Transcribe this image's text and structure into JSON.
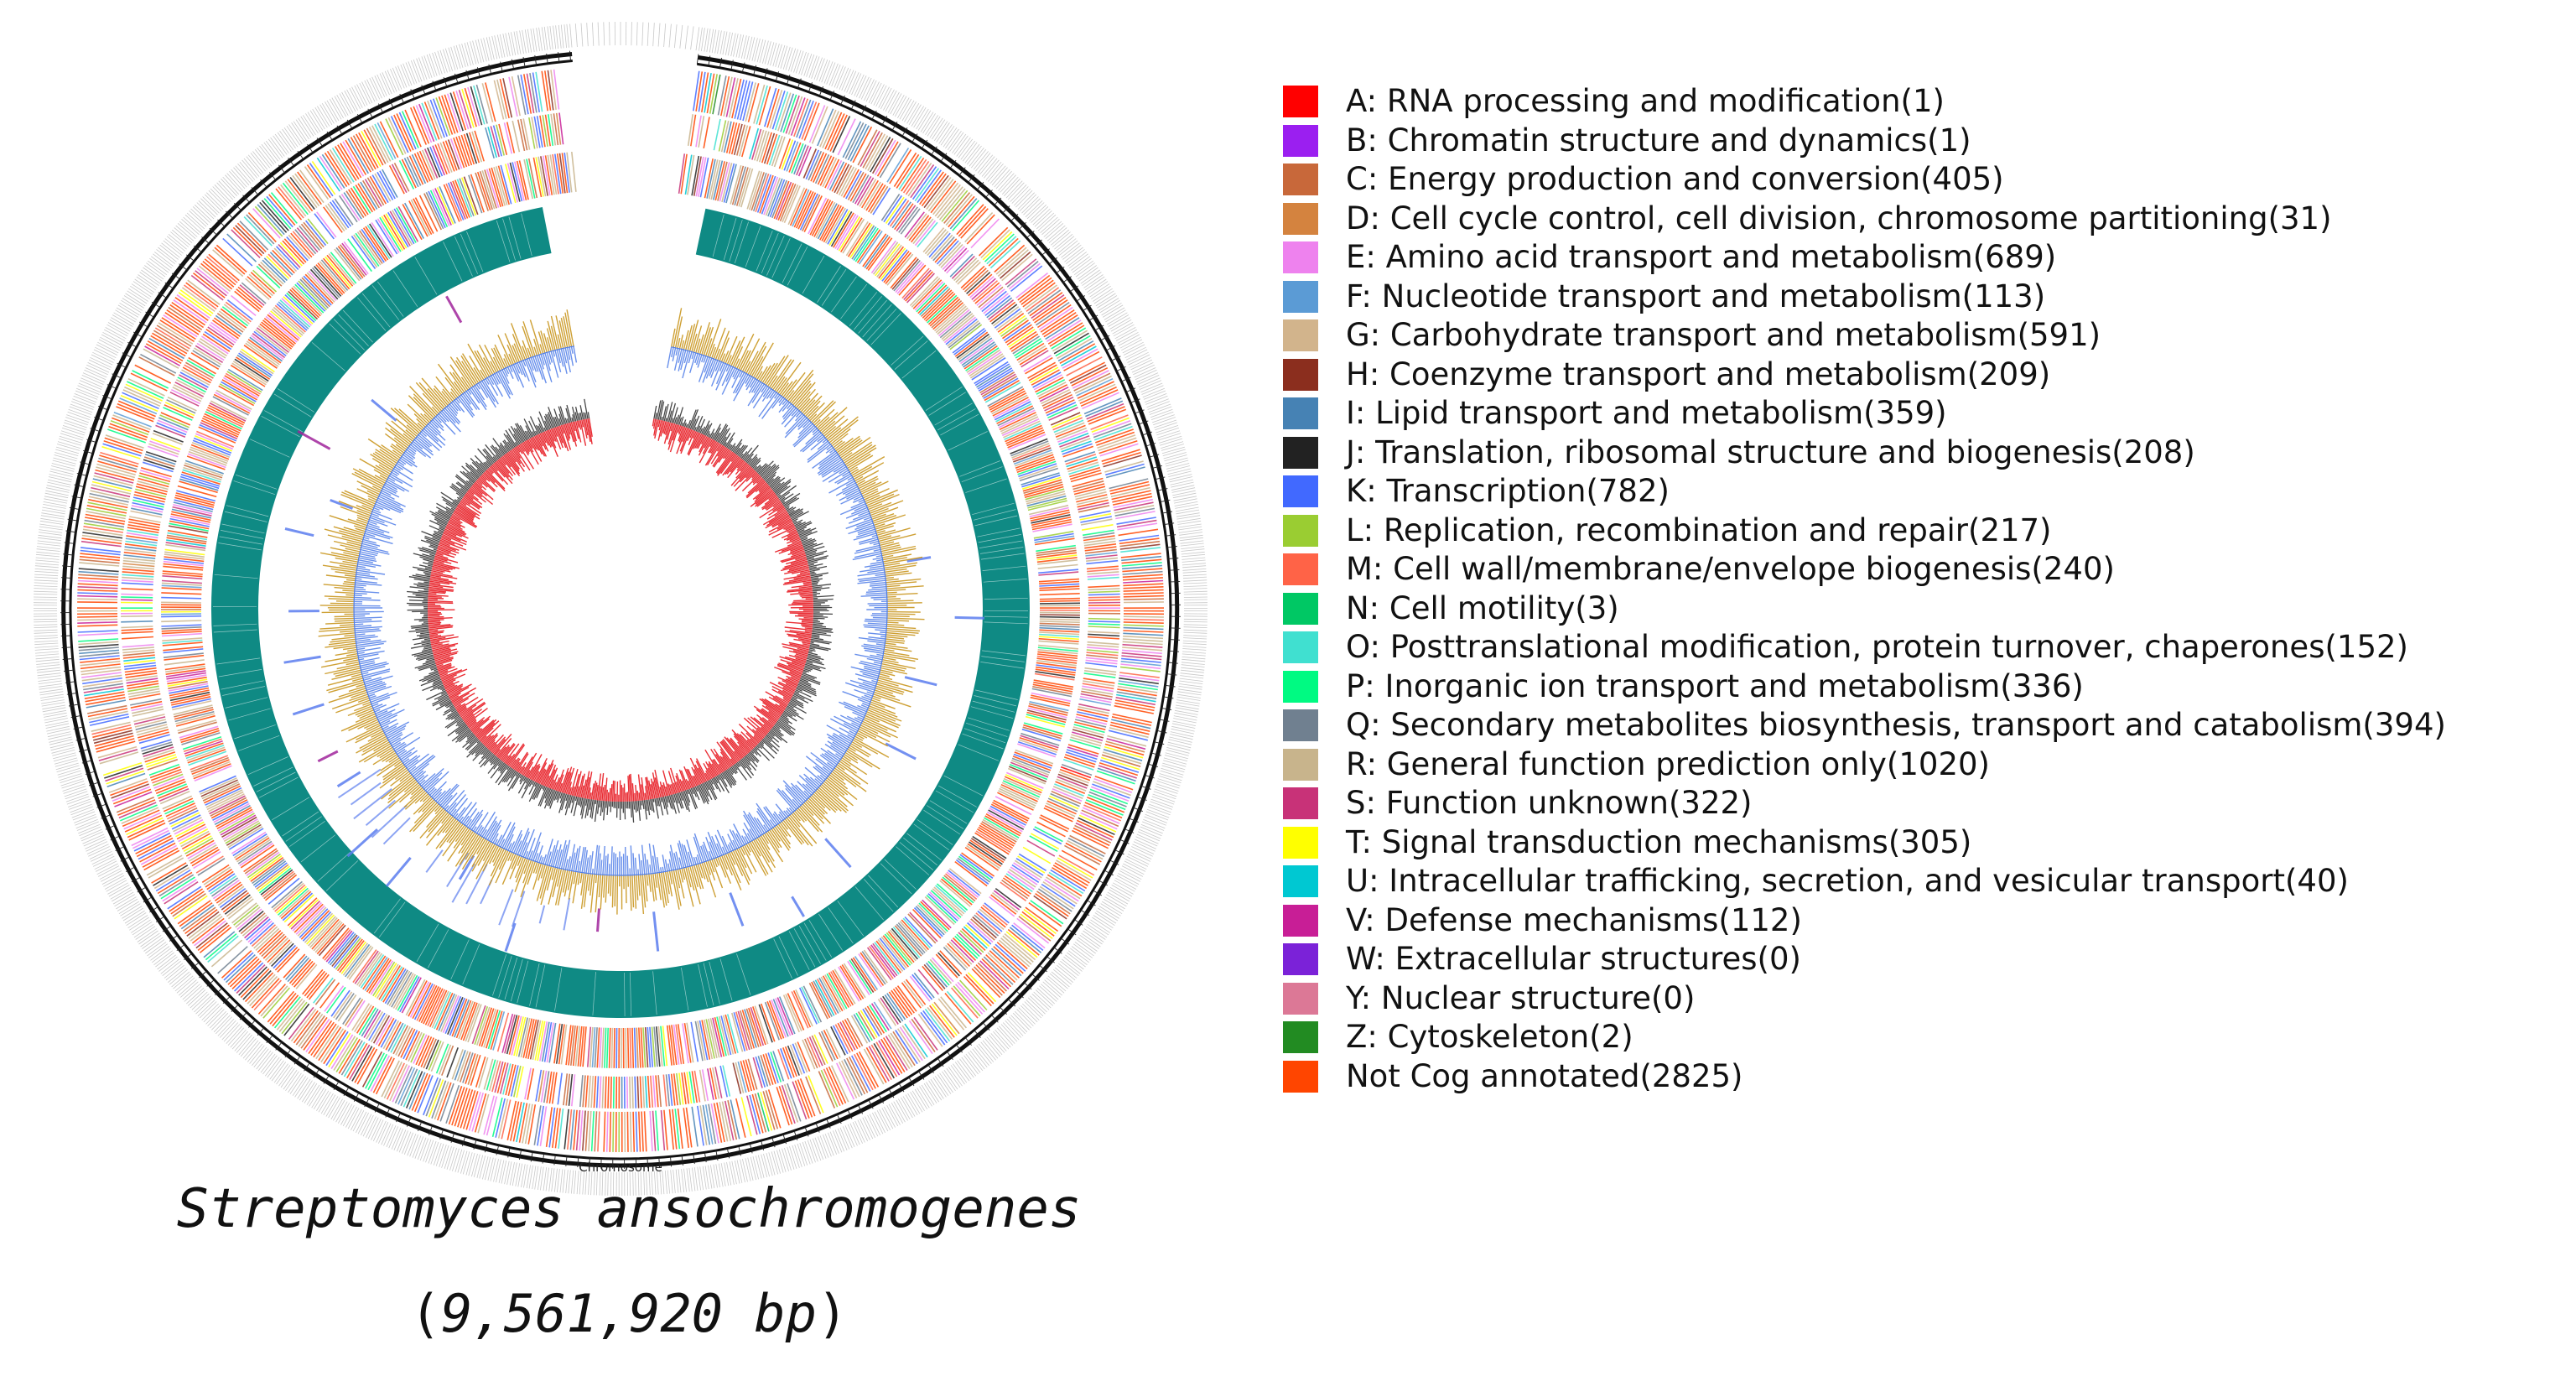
{
  "figure": {
    "chromosome_label": "Chromosome",
    "species": "Streptomyces ansochromogenes",
    "size_open": "(",
    "size_value": "9,561,920 bp",
    "size_close": ")"
  },
  "colors": {
    "gc_skew_negative": "#e8232a",
    "gc_skew_positive": "#333333",
    "gc_content_high": "#c9961e",
    "gc_content_low": "#4f7de8",
    "rna_track": "#0f8a84",
    "rrna_marker": "#5b7dee",
    "trna_marker": "#a0259b"
  },
  "legend": [
    {
      "label": "A: RNA processing and modification(1)",
      "color": "#ff0000"
    },
    {
      "label": "B: Chromatin structure and dynamics(1)",
      "color": "#9b1ff0"
    },
    {
      "label": "C: Energy production and conversion(405)",
      "color": "#c8683a"
    },
    {
      "label": "D: Cell cycle control, cell division, chromosome partitioning(31)",
      "color": "#d4833f"
    },
    {
      "label": "E: Amino acid transport and metabolism(689)",
      "color": "#ee82ee"
    },
    {
      "label": "F: Nucleotide transport and metabolism(113)",
      "color": "#5b9bd5"
    },
    {
      "label": "G: Carbohydrate transport and metabolism(591)",
      "color": "#d2b48c"
    },
    {
      "label": "H: Coenzyme transport and metabolism(209)",
      "color": "#8b2e1e"
    },
    {
      "label": "I: Lipid transport and metabolism(359)",
      "color": "#4682b4"
    },
    {
      "label": "J: Translation, ribosomal structure and biogenesis(208)",
      "color": "#222222"
    },
    {
      "label": "K: Transcription(782)",
      "color": "#4169ff"
    },
    {
      "label": "L: Replication, recombination and repair(217)",
      "color": "#9acd32"
    },
    {
      "label": "M: Cell wall/membrane/envelope biogenesis(240)",
      "color": "#ff6347"
    },
    {
      "label": "N: Cell motility(3)",
      "color": "#00c864"
    },
    {
      "label": "O: Posttranslational modification, protein turnover, chaperones(152)",
      "color": "#40e0d0"
    },
    {
      "label": "P: Inorganic ion transport and metabolism(336)",
      "color": "#00fa82"
    },
    {
      "label": "Q: Secondary metabolites biosynthesis, transport and catabolism(394)",
      "color": "#708090"
    },
    {
      "label": "R: General function prediction only(1020)",
      "color": "#c8b48c"
    },
    {
      "label": "S: Function unknown(322)",
      "color": "#c83278"
    },
    {
      "label": "T: Signal transduction mechanisms(305)",
      "color": "#ffff00"
    },
    {
      "label": "U: Intracellular trafficking, secretion, and vesicular transport(40)",
      "color": "#00c8d2"
    },
    {
      "label": "V: Defense mechanisms(112)",
      "color": "#c81e96"
    },
    {
      "label": "W: Extracellular structures(0)",
      "color": "#7b22d8"
    },
    {
      "label": "Y: Nuclear structure(0)",
      "color": "#dc7896"
    },
    {
      "label": "Z: Cytoskeleton(2)",
      "color": "#228b22"
    },
    {
      "label": "Not Cog annotated(2825)",
      "color": "#ff4500"
    }
  ]
}
